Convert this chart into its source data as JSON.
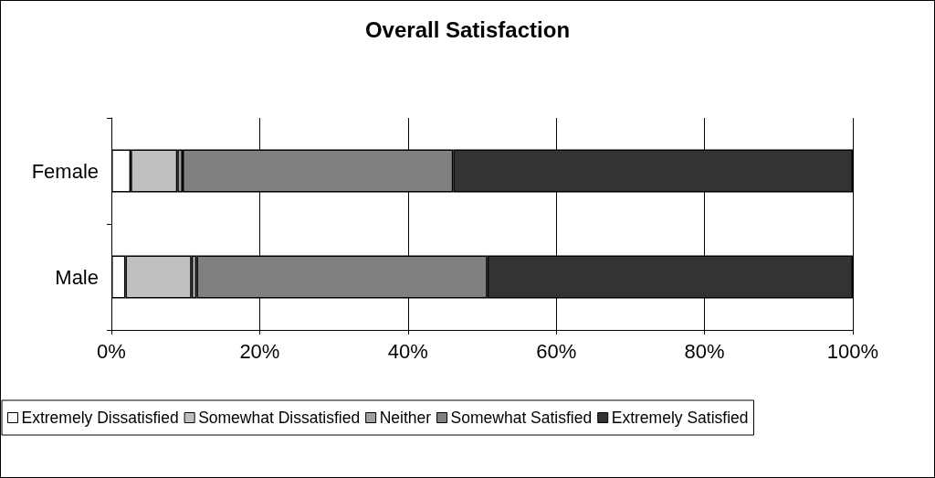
{
  "chart_data": {
    "type": "bar",
    "orientation": "horizontal",
    "stacked": true,
    "title": "Overall Satisfaction",
    "categories": [
      "Female",
      "Male"
    ],
    "series": [
      {
        "name": "Extremely Dissatisfied",
        "color": "#ffffff",
        "values": [
          2.6,
          1.9
        ]
      },
      {
        "name": "Somewhat Dissatisfied",
        "color": "#c0c0c0",
        "values": [
          6.3,
          8.9
        ]
      },
      {
        "name": "Neither",
        "color": "#a0a0a0",
        "values": [
          0.7,
          0.7
        ]
      },
      {
        "name": "Somewhat Satisfied",
        "color": "#808080",
        "values": [
          36.5,
          39.2
        ]
      },
      {
        "name": "Extremely Satisfied",
        "color": "#333333",
        "values": [
          53.9,
          49.3
        ]
      }
    ],
    "xlim": [
      0,
      100
    ],
    "xticks": [
      {
        "value": 0,
        "label": "0%"
      },
      {
        "value": 20,
        "label": "20%"
      },
      {
        "value": 40,
        "label": "40%"
      },
      {
        "value": 60,
        "label": "60%"
      },
      {
        "value": 80,
        "label": "80%"
      },
      {
        "value": 100,
        "label": "100%"
      }
    ],
    "grid": "x",
    "legend": "bottom"
  }
}
